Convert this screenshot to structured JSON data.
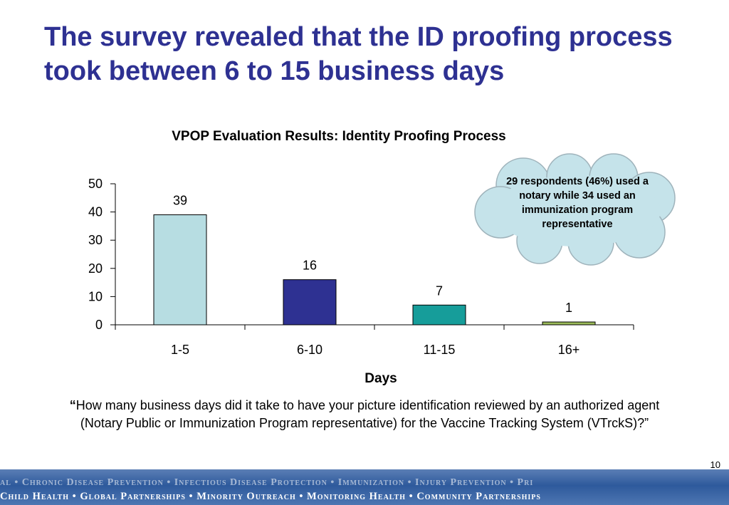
{
  "slide": {
    "title": "The survey revealed that the ID proofing process took between 6 to 15 business days",
    "page_number": "10"
  },
  "callout": {
    "text": "29 respondents (46%) used a notary while 34 used an immunization program representative"
  },
  "question": {
    "open_quote": "“",
    "text": "How many business days did it take to have your  picture identification reviewed by an authorized agent (Notary Public or Immunization Program representative) for the Vaccine Tracking System (VTrckS)?”"
  },
  "footer": {
    "line1": "al • Chronic Disease Prevention • Infectious Disease Protection • Immunization • Injury Prevention • Pri",
    "line2": "Child Health • Global Partnerships • Minority Outreach • Monitoring Health • Community Partnerships"
  },
  "chart_data": {
    "type": "bar",
    "title": "VPOP Evaluation Results: Identity Proofing Process",
    "xlabel": "Days",
    "ylabel": "",
    "categories": [
      "1-5",
      "6-10",
      "11-15",
      "16+"
    ],
    "values": [
      39,
      16,
      7,
      1
    ],
    "data_labels": [
      "39",
      "16",
      "7",
      "1"
    ],
    "bar_colors": [
      "#b7dde2",
      "#2e3192",
      "#169d9a",
      "#9bbb59"
    ],
    "ylim": [
      0,
      50
    ],
    "yticks": [
      0,
      10,
      20,
      30,
      40,
      50
    ],
    "grid": false,
    "legend": "none"
  },
  "colors": {
    "title": "#2e3192",
    "cloud_fill": "#c5e3ea",
    "footer": "#2e5a9c"
  }
}
